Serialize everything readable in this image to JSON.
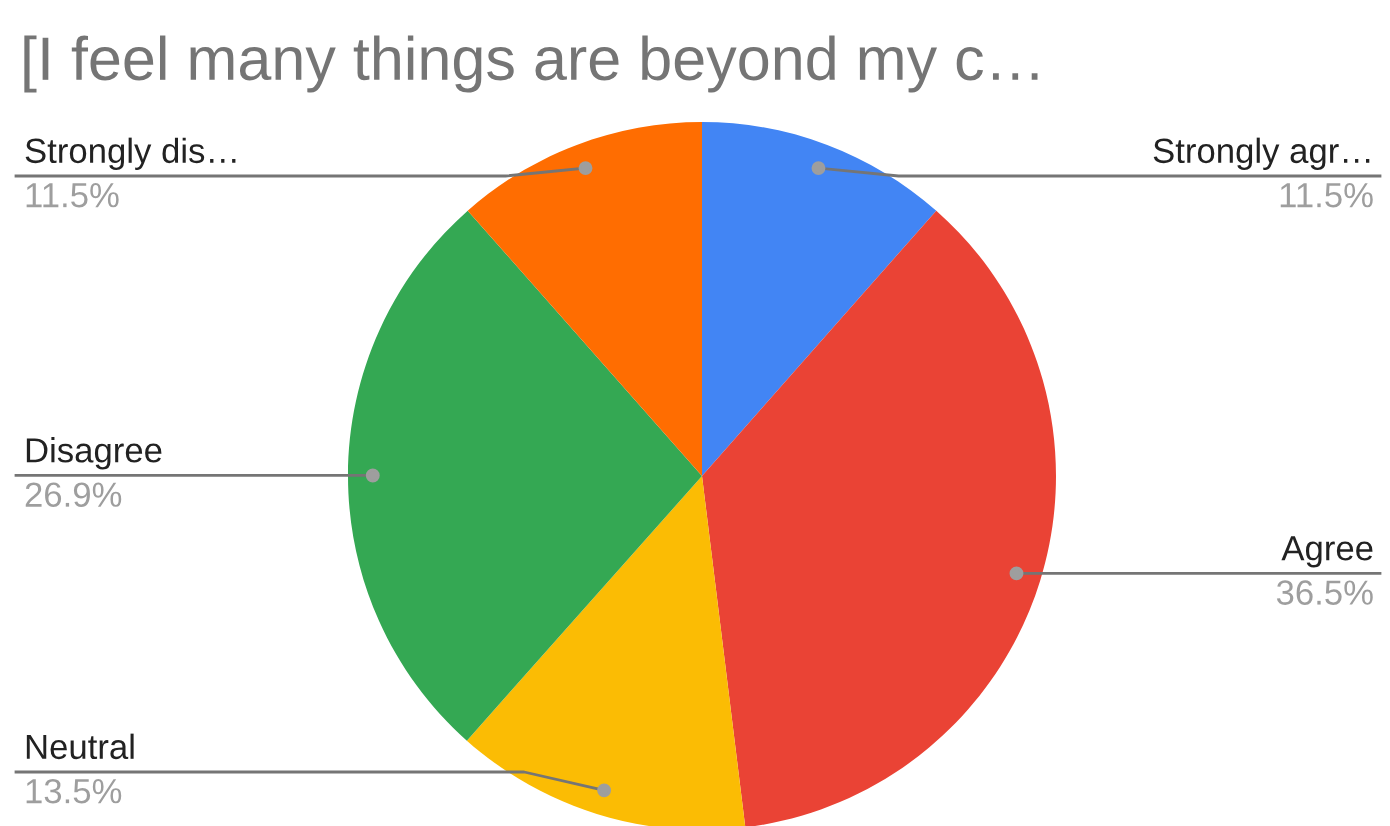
{
  "chart_data": {
    "type": "pie",
    "title": "[I feel many things are beyond my c…",
    "categories": [
      "Strongly agr…",
      "Agree",
      "Neutral",
      "Disagree",
      "Strongly dis…"
    ],
    "values": [
      11.5,
      36.5,
      13.5,
      26.9,
      11.5
    ],
    "value_labels": [
      "11.5%",
      "36.5%",
      "13.5%",
      "26.9%",
      "11.5%"
    ],
    "colors": [
      "#4285f4",
      "#ea4335",
      "#fbbc04",
      "#34a853",
      "#ff6d01"
    ],
    "legend": false
  }
}
